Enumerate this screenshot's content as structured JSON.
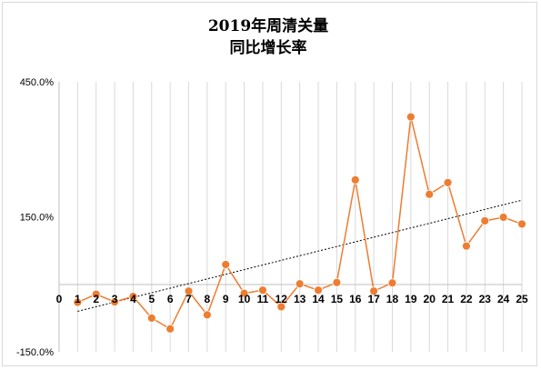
{
  "chart_data": {
    "type": "line",
    "title_lines": [
      "2019年周清关量",
      "同比增长率"
    ],
    "x": [
      1,
      2,
      3,
      4,
      5,
      6,
      7,
      8,
      9,
      10,
      11,
      12,
      13,
      14,
      15,
      16,
      17,
      18,
      19,
      20,
      21,
      22,
      23,
      24,
      25
    ],
    "x_tick_labels": [
      "0",
      "1",
      "2",
      "3",
      "4",
      "5",
      "6",
      "7",
      "8",
      "9",
      "10",
      "11",
      "12",
      "13",
      "14",
      "15",
      "16",
      "17",
      "18",
      "19",
      "20",
      "21",
      "22",
      "23",
      "24",
      "25"
    ],
    "xlim": [
      0,
      25
    ],
    "y_tick_labels": [
      "450.0%",
      "150.0%",
      "-150.0%"
    ],
    "y_ticks": [
      450,
      150,
      -150
    ],
    "ylim": [
      -150,
      450
    ],
    "series": [
      {
        "values": [
          -40,
          -22,
          -39,
          -27,
          -75,
          -99,
          -15,
          -68,
          44,
          -20,
          -13,
          -50,
          1,
          -13,
          4,
          232,
          -15,
          3,
          372,
          200,
          226,
          85,
          141,
          149,
          134
        ],
        "color": "#ed7d31"
      }
    ],
    "trendline": {
      "kind": "linear",
      "start": -60,
      "end": 187,
      "color": "#000000"
    },
    "grid": {
      "vertical": true,
      "horizontal": false,
      "color": "#d9d9d9"
    }
  }
}
